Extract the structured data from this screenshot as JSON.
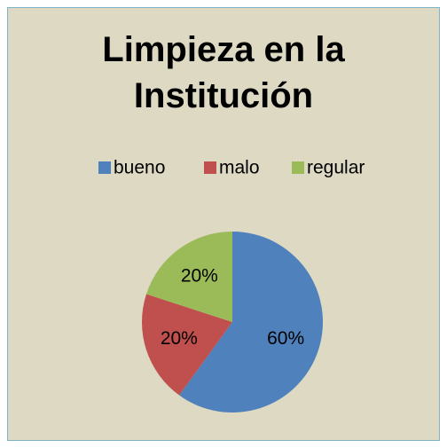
{
  "chart_data": {
    "type": "pie",
    "title": "Limpieza en la Institución",
    "categories": [
      "bueno",
      "malo",
      "regular"
    ],
    "values": [
      60,
      20,
      20
    ],
    "value_labels": [
      "60%",
      "20%",
      "20%"
    ],
    "colors": [
      "#4f81bd",
      "#c0504d",
      "#9bbb59"
    ],
    "legend": "top"
  }
}
